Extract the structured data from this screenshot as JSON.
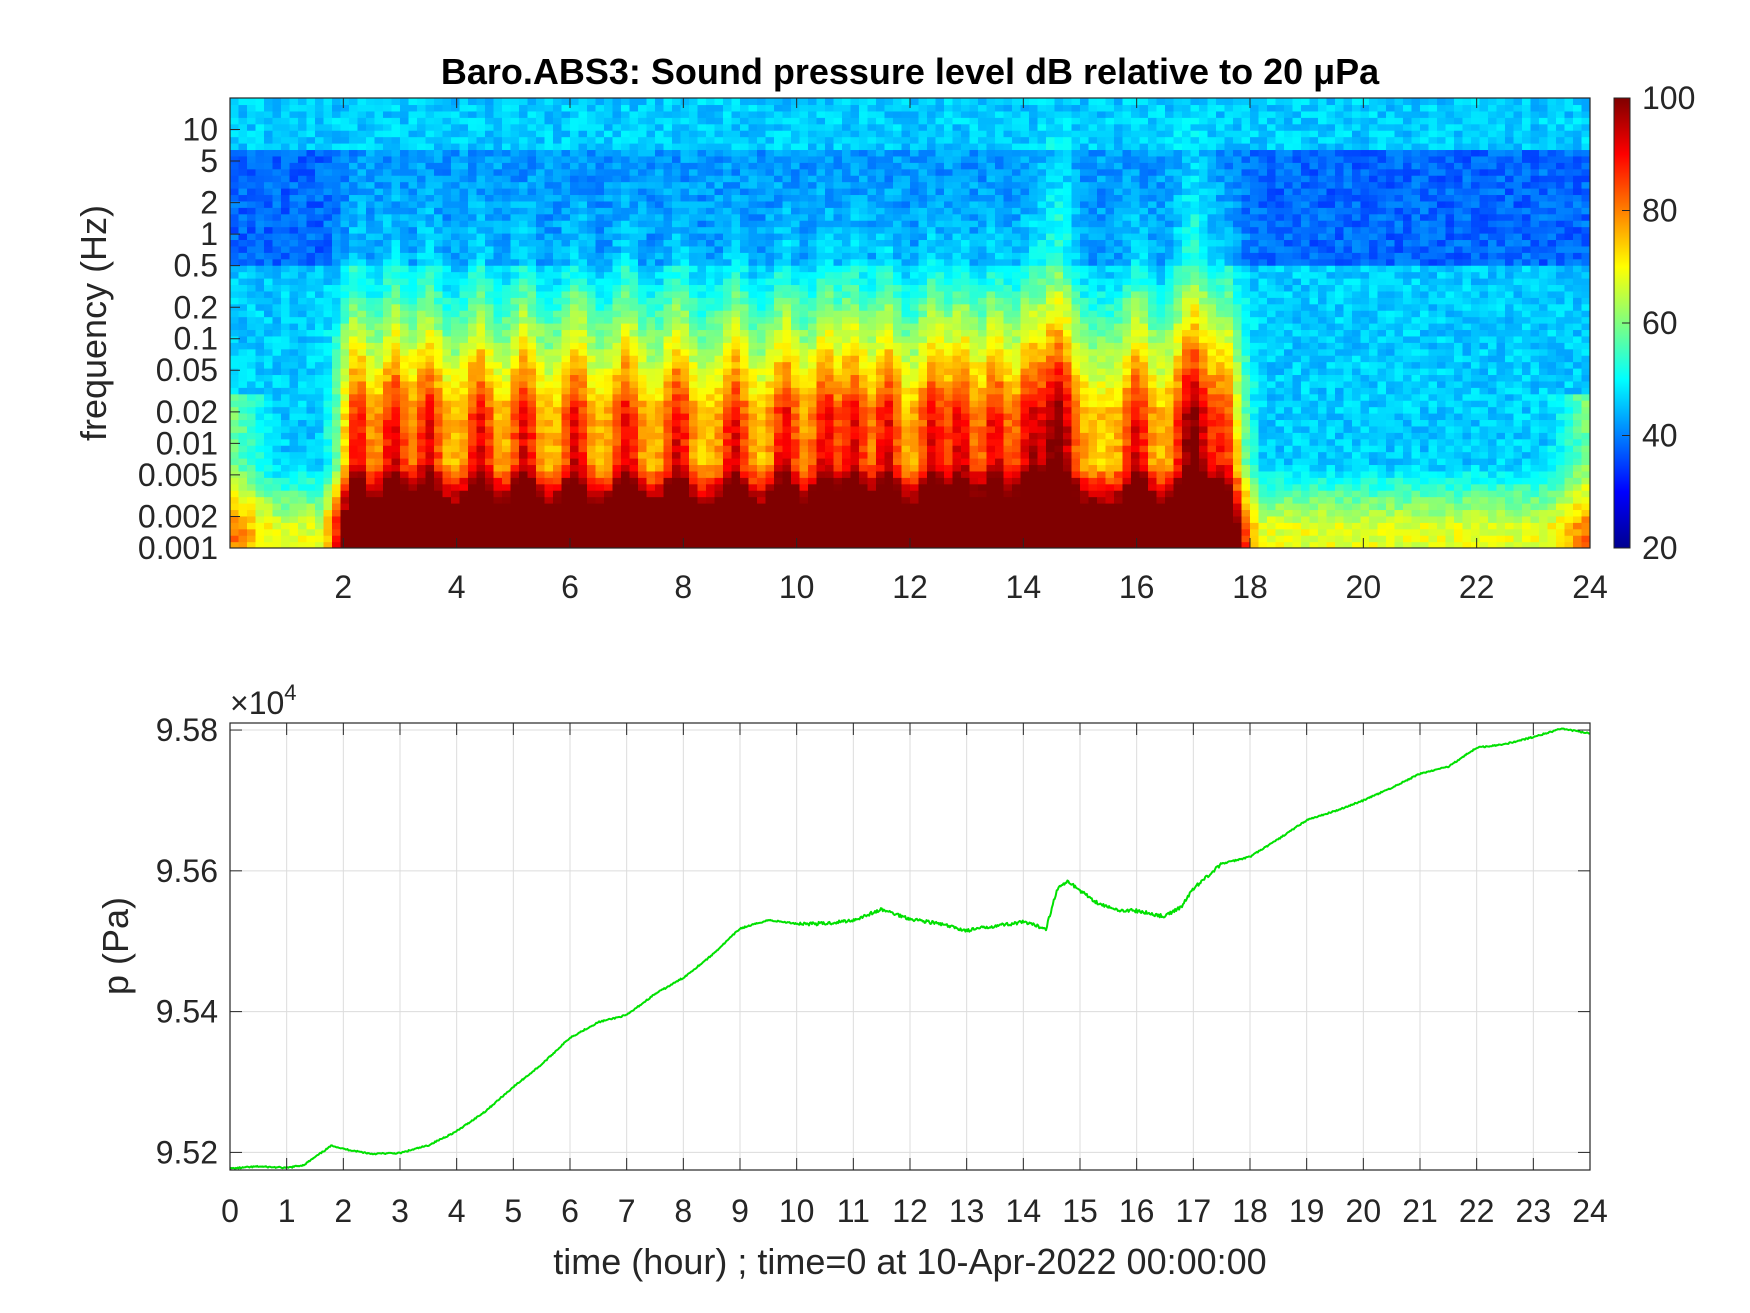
{
  "chart_data": [
    {
      "type": "heatmap",
      "title": "Baro.ABS3: Sound pressure level dB relative to 20 μPa",
      "xlabel": "",
      "ylabel": "frequency (Hz)",
      "xlim": [
        0,
        24
      ],
      "ylim": [
        0.001,
        20
      ],
      "y_scale": "log",
      "x_ticks": [
        "2",
        "4",
        "6",
        "8",
        "10",
        "12",
        "14",
        "16",
        "18",
        "20",
        "22",
        "24"
      ],
      "y_ticks": [
        "0.001",
        "0.002",
        "0.005",
        "0.01",
        "0.02",
        "0.05",
        "0.1",
        "0.2",
        "0.5",
        "1",
        "2",
        "5",
        "10"
      ],
      "colorbar": {
        "colormap": "jet",
        "range": [
          20,
          100
        ],
        "ticks": [
          "20",
          "40",
          "60",
          "80",
          "100"
        ]
      },
      "colormap_stops": [
        "#00008f",
        "#0000ff",
        "#00ffff",
        "#ffff00",
        "#ff0000",
        "#800000"
      ],
      "broadband_events_hours": [
        2.2,
        2.9,
        3.5,
        4.4,
        5.2,
        6.1,
        7.0,
        7.9,
        8.9,
        9.8,
        10.5,
        11.0,
        11.6,
        12.4,
        12.9,
        13.5,
        14.1,
        14.6,
        16.0,
        17.0,
        17.6
      ],
      "strong_events_hours": [
        14.6,
        17.0
      ]
    },
    {
      "type": "line",
      "title": "",
      "xlabel": "time (hour) ; time=0 at 10-Apr-2022 00:00:00",
      "ylabel": "p (Pa)",
      "exponent_base": "×10",
      "exponent_power": "4",
      "xlim": [
        0,
        24
      ],
      "ylim": [
        95175,
        95810
      ],
      "grid": true,
      "x_ticks": [
        "0",
        "1",
        "2",
        "3",
        "4",
        "5",
        "6",
        "7",
        "8",
        "9",
        "10",
        "11",
        "12",
        "13",
        "14",
        "15",
        "16",
        "17",
        "18",
        "19",
        "20",
        "21",
        "22",
        "23",
        "24"
      ],
      "y_ticks": [
        "9.52",
        "9.54",
        "9.56",
        "9.58"
      ],
      "series": [
        {
          "color": "#00e000",
          "x": [
            0,
            0.5,
            1,
            1.3,
            1.8,
            2,
            2.5,
            3,
            3.5,
            4,
            4.5,
            5,
            5.5,
            6,
            6.5,
            7,
            7.5,
            8,
            8.5,
            9,
            9.5,
            10,
            10.5,
            11,
            11.5,
            12,
            12.5,
            13,
            13.5,
            14,
            14.4,
            14.6,
            14.8,
            15,
            15.3,
            15.6,
            16,
            16.5,
            16.8,
            17,
            17.5,
            18,
            18.5,
            19,
            19.5,
            20,
            20.5,
            21,
            21.5,
            22,
            22.5,
            23,
            23.5,
            24
          ],
          "y": [
            95177,
            95180,
            95178,
            95182,
            95210,
            95205,
            95198,
            95199,
            95210,
            95230,
            95258,
            95293,
            95325,
            95363,
            95385,
            95395,
            95425,
            95448,
            95480,
            95518,
            95530,
            95525,
            95525,
            95530,
            95545,
            95532,
            95525,
            95515,
            95522,
            95527,
            95518,
            95575,
            95585,
            95572,
            95555,
            95545,
            95543,
            95535,
            95550,
            95575,
            95610,
            95620,
            95645,
            95672,
            95685,
            95700,
            95718,
            95738,
            95748,
            95775,
            95780,
            95790,
            95802,
            95795
          ]
        }
      ]
    }
  ]
}
